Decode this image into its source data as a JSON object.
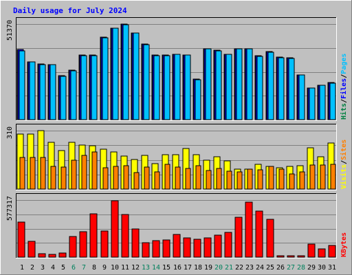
{
  "chart_data": {
    "type": "bar",
    "title": "Daily usage for July 2024",
    "categories": [
      "1",
      "2",
      "3",
      "4",
      "5",
      "6",
      "7",
      "8",
      "9",
      "10",
      "11",
      "12",
      "13",
      "14",
      "15",
      "16",
      "17",
      "18",
      "19",
      "20",
      "21",
      "22",
      "23",
      "24",
      "25",
      "26",
      "27",
      "28",
      "29",
      "30",
      "31"
    ],
    "weekend_days": [
      6,
      7,
      13,
      14,
      20,
      21,
      27,
      28
    ],
    "colors": {
      "title": "#0000ff",
      "weekday_label": "#000000",
      "weekend_label": "#00805c",
      "hits": "#008040",
      "files": "#0000ff",
      "pages": "#00c0ff",
      "visits": "#ffff00",
      "sites": "#ff8000",
      "kbytes": "#ff0000",
      "background": "#c0c0c0",
      "grid": "#808080"
    },
    "panels": [
      {
        "id": "top",
        "max_label": "51370",
        "ymax": 51370,
        "legend": [
          {
            "text": "Hits",
            "color": "#008040"
          },
          {
            "text": "/",
            "color": "#000000"
          },
          {
            "text": "Files",
            "color": "#0000ff"
          },
          {
            "text": "/",
            "color": "#000000"
          },
          {
            "text": "Pages",
            "color": "#00c0ff"
          }
        ],
        "series": [
          {
            "name": "Hits",
            "color": "#008040",
            "values": [
              37800,
              31200,
              30000,
              29700,
              23800,
              26600,
              34700,
              34800,
              44400,
              49200,
              51300,
              46700,
              40600,
              34600,
              34600,
              35200,
              34800,
              21800,
              38200,
              37400,
              35100,
              38200,
              38200,
              34300,
              36500,
              33500,
              33400,
              24200,
              17100,
              18500,
              20000
            ]
          },
          {
            "name": "Files",
            "color": "#0000ff",
            "values": [
              37800,
              31200,
              30000,
              29700,
              23800,
              26600,
              34700,
              34800,
              44400,
              49200,
              51300,
              46700,
              40600,
              34600,
              34600,
              35200,
              34800,
              21800,
              38200,
              37400,
              35100,
              38200,
              38200,
              34300,
              36500,
              33500,
              33400,
              24200,
              17100,
              18500,
              20000
            ]
          },
          {
            "name": "Pages",
            "color": "#00c0ff",
            "values": [
              37000,
              31000,
              29600,
              29500,
              23300,
              26300,
              34500,
              34500,
              44000,
              49000,
              51000,
              46500,
              40300,
              34300,
              34300,
              35000,
              34600,
              21500,
              38000,
              37100,
              35000,
              38000,
              38000,
              34000,
              36300,
              33300,
              33000,
              24000,
              16900,
              18300,
              19700
            ]
          }
        ]
      },
      {
        "id": "middle",
        "max_label": "310",
        "ymax": 310,
        "legend": [
          {
            "text": "Visits",
            "color": "#ffff00"
          },
          {
            "text": "/",
            "color": "#000000"
          },
          {
            "text": "Sites",
            "color": "#ff8000"
          }
        ],
        "series": [
          {
            "name": "Visits",
            "color": "#ffff00",
            "values": [
              293,
              293,
              310,
              249,
              206,
              248,
              234,
              230,
              212,
              196,
              174,
              158,
              180,
              136,
              183,
              183,
              216,
              182,
              155,
              170,
              149,
              107,
              106,
              131,
              122,
              114,
              121,
              125,
              218,
              170,
              244
            ]
          },
          {
            "name": "Sites",
            "color": "#ff8000",
            "values": [
              169,
              168,
              169,
              120,
              118,
              153,
              180,
              198,
              112,
              122,
              124,
              89,
              115,
              91,
              132,
              118,
              111,
              125,
              100,
              108,
              96,
              92,
              107,
              101,
              119,
              104,
              81,
              93,
              126,
              126,
              131
            ]
          }
        ]
      },
      {
        "id": "bottom",
        "max_label": "577317",
        "ymax": 577317,
        "legend": [
          {
            "text": "KBytes",
            "color": "#ff0000"
          }
        ],
        "series": [
          {
            "name": "KBytes",
            "color": "#ff0000",
            "values": [
              352000,
              160000,
              32000,
              26000,
              43000,
              211000,
              258000,
              438000,
              262000,
              569000,
              428000,
              286000,
              146000,
              168000,
              172000,
              232000,
              194000,
              184000,
              193000,
              224000,
              252000,
              404000,
              555000,
              463000,
              385000,
              12000,
              12000,
              13000,
              131000,
              81000,
              117000
            ]
          }
        ]
      }
    ]
  }
}
